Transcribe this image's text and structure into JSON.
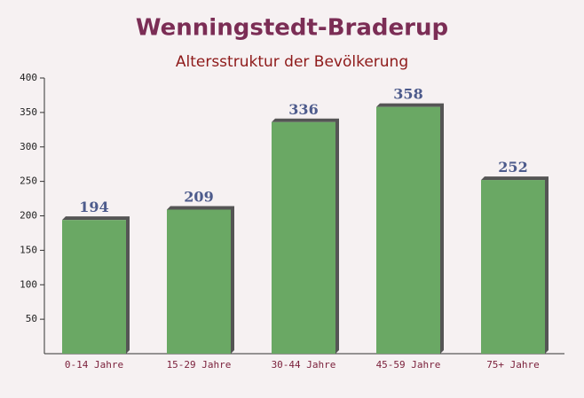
{
  "chart_data": {
    "type": "bar",
    "title": "Wenningstedt-Braderup",
    "subtitle": "Altersstruktur der Bevölkerung",
    "categories": [
      "0-14 Jahre",
      "15-29 Jahre",
      "30-44 Jahre",
      "45-59 Jahre",
      "75+ Jahre"
    ],
    "values": [
      194,
      209,
      336,
      358,
      252
    ],
    "color": "#6aa864",
    "ylim": [
      0,
      400
    ],
    "yticks": [
      50,
      100,
      150,
      200,
      250,
      300,
      350,
      400
    ],
    "grid": false
  }
}
